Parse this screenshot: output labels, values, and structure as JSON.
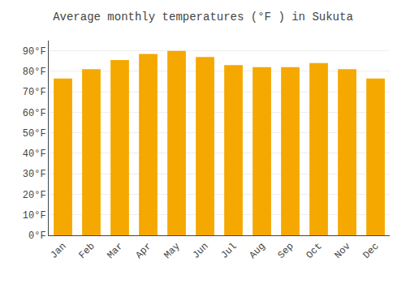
{
  "chart_data": {
    "type": "bar",
    "title": "Average monthly temperatures (°F ) in Sukuta",
    "categories": [
      "Jan",
      "Feb",
      "Mar",
      "Apr",
      "May",
      "Jun",
      "Jul",
      "Aug",
      "Sep",
      "Oct",
      "Nov",
      "Dec"
    ],
    "values": [
      76.5,
      81.0,
      85.5,
      88.5,
      90.0,
      87.0,
      83.0,
      82.0,
      82.0,
      84.0,
      81.0,
      76.5
    ],
    "color": "#F5A800",
    "ylim": [
      0,
      95
    ],
    "yticks": [
      {
        "value": 0,
        "label": "0°F"
      },
      {
        "value": 10,
        "label": "10°F"
      },
      {
        "value": 20,
        "label": "20°F"
      },
      {
        "value": 30,
        "label": "30°F"
      },
      {
        "value": 40,
        "label": "40°F"
      },
      {
        "value": 50,
        "label": "50°F"
      },
      {
        "value": 60,
        "label": "60°F"
      },
      {
        "value": 70,
        "label": "70°F"
      },
      {
        "value": 80,
        "label": "80°F"
      },
      {
        "value": 90,
        "label": "90°F"
      }
    ],
    "grid": true
  }
}
